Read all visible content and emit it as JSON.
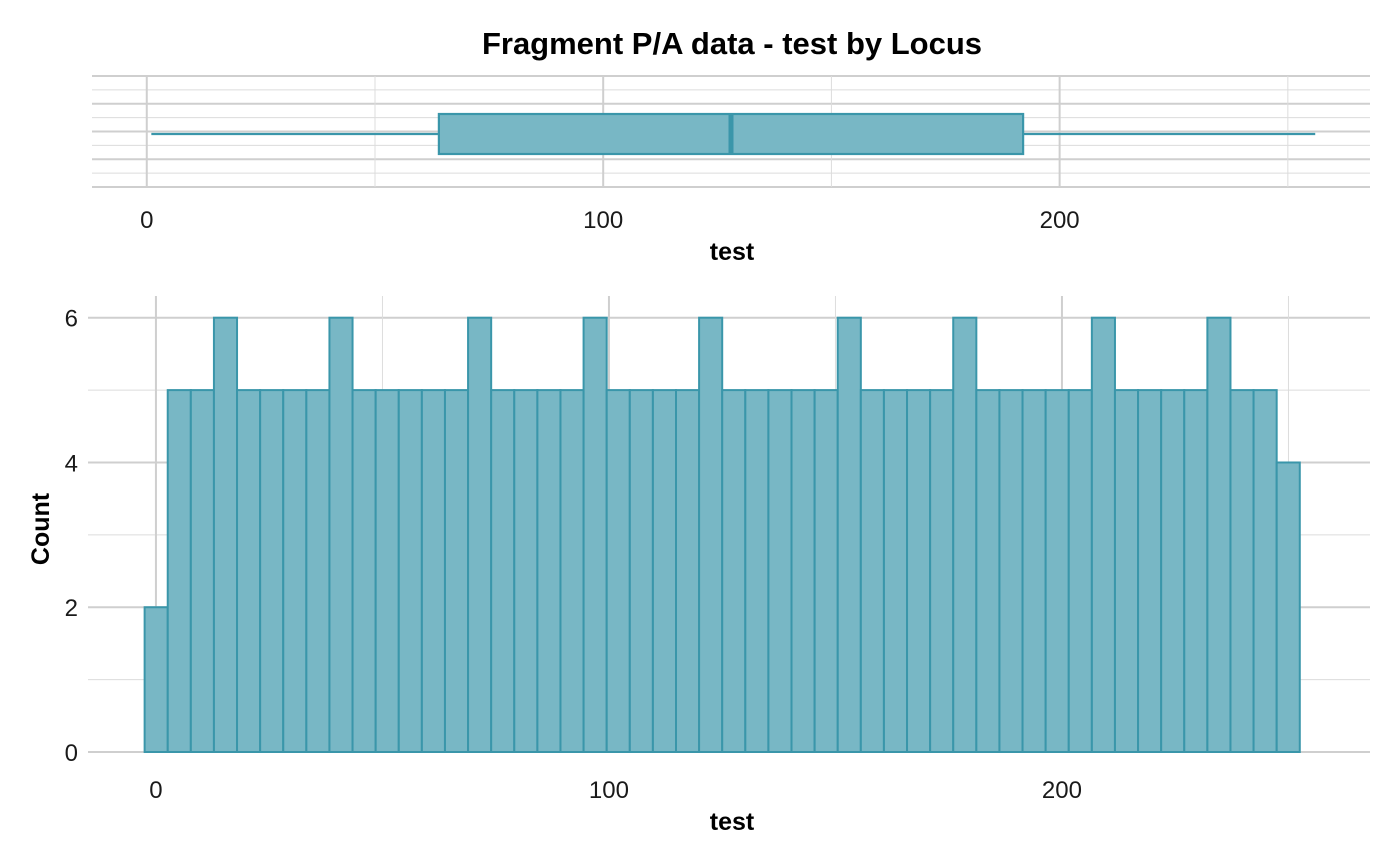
{
  "title": "Fragment P/A data - test by Locus",
  "colors": {
    "fill": "#78b7c5",
    "stroke": "#3a96aa"
  },
  "chart_data": [
    {
      "type": "boxplot",
      "orientation": "horizontal",
      "xlabel": "test",
      "ylabel": "",
      "xlim": [
        -12,
        268
      ],
      "x_ticks": [
        0,
        100,
        200
      ],
      "tick_labels": [
        "0",
        "100",
        "200"
      ],
      "grid": true,
      "stats": {
        "min": 1,
        "q1": 64,
        "median": 128,
        "q3": 192,
        "max": 256
      }
    },
    {
      "type": "bar",
      "subtype": "histogram",
      "xlabel": "test",
      "ylabel": "Count",
      "xlim": [
        -15,
        268
      ],
      "ylim": [
        0,
        6.3
      ],
      "x_ticks": [
        0,
        100,
        200
      ],
      "x_tick_labels": [
        "0",
        "100",
        "200"
      ],
      "y_ticks": [
        0,
        2,
        4,
        6
      ],
      "y_tick_labels": [
        "0",
        "2",
        "4",
        "6"
      ],
      "grid": true,
      "bin_start": -2.5,
      "bin_width": 5.1,
      "values": [
        2,
        5,
        5,
        6,
        5,
        5,
        5,
        5,
        6,
        5,
        5,
        5,
        5,
        5,
        6,
        5,
        5,
        5,
        5,
        6,
        5,
        5,
        5,
        5,
        6,
        5,
        5,
        5,
        5,
        5,
        6,
        5,
        5,
        5,
        5,
        6,
        5,
        5,
        5,
        5,
        5,
        6,
        5,
        5,
        5,
        5,
        6,
        5,
        5,
        4
      ]
    }
  ]
}
